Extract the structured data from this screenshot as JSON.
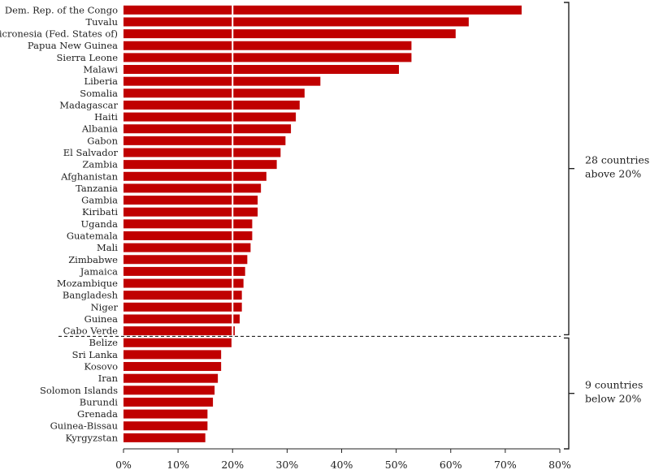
{
  "chart_data": {
    "type": "bar",
    "orientation": "horizontal",
    "categories": [
      "Dem. Rep. of the Congo",
      "Tuvalu",
      "Micronesia (Fed. States of)",
      "Papua New Guinea",
      "Sierra Leone",
      "Malawi",
      "Liberia",
      "Somalia",
      "Madagascar",
      "Haiti",
      "Albania",
      "Gabon",
      "El Salvador",
      "Zambia",
      "Afghanistan",
      "Tanzania",
      "Gambia",
      "Kiribati",
      "Uganda",
      "Guatemala",
      "Mali",
      "Zimbabwe",
      "Jamaica",
      "Mozambique",
      "Bangladesh",
      "Niger",
      "Guinea",
      "Cabo Verde",
      "Belize",
      "Sri Lanka",
      "Kosovo",
      "Iran",
      "Solomon Islands",
      "Burundi",
      "Grenada",
      "Guinea-Bissau",
      "Kyrgyzstan"
    ],
    "values": [
      73.0,
      63.3,
      60.9,
      52.8,
      52.8,
      50.5,
      36.1,
      33.2,
      32.3,
      31.6,
      30.7,
      29.7,
      28.8,
      28.1,
      26.2,
      25.2,
      24.6,
      24.6,
      23.6,
      23.6,
      23.3,
      22.7,
      22.3,
      22.0,
      21.7,
      21.7,
      21.3,
      20.4,
      19.8,
      17.9,
      17.9,
      17.3,
      16.7,
      16.4,
      15.4,
      15.4,
      15.0
    ],
    "xlim": [
      0,
      80
    ],
    "xticks": [
      0,
      10,
      20,
      30,
      40,
      50,
      60,
      70,
      80
    ],
    "xtick_labels": [
      "0%",
      "10%",
      "20%",
      "30%",
      "40%",
      "50%",
      "60%",
      "70%",
      "80%"
    ],
    "reference_line": 20,
    "bar_color": "#c00000",
    "reference_line_color": "#ffffff",
    "grid": false,
    "groups": [
      {
        "label_lines": [
          "28 countries",
          "above 20%"
        ],
        "start_index": 0,
        "end_index": 27
      },
      {
        "label_lines": [
          "9 countries",
          "below 20%"
        ],
        "start_index": 28,
        "end_index": 36
      }
    ]
  }
}
